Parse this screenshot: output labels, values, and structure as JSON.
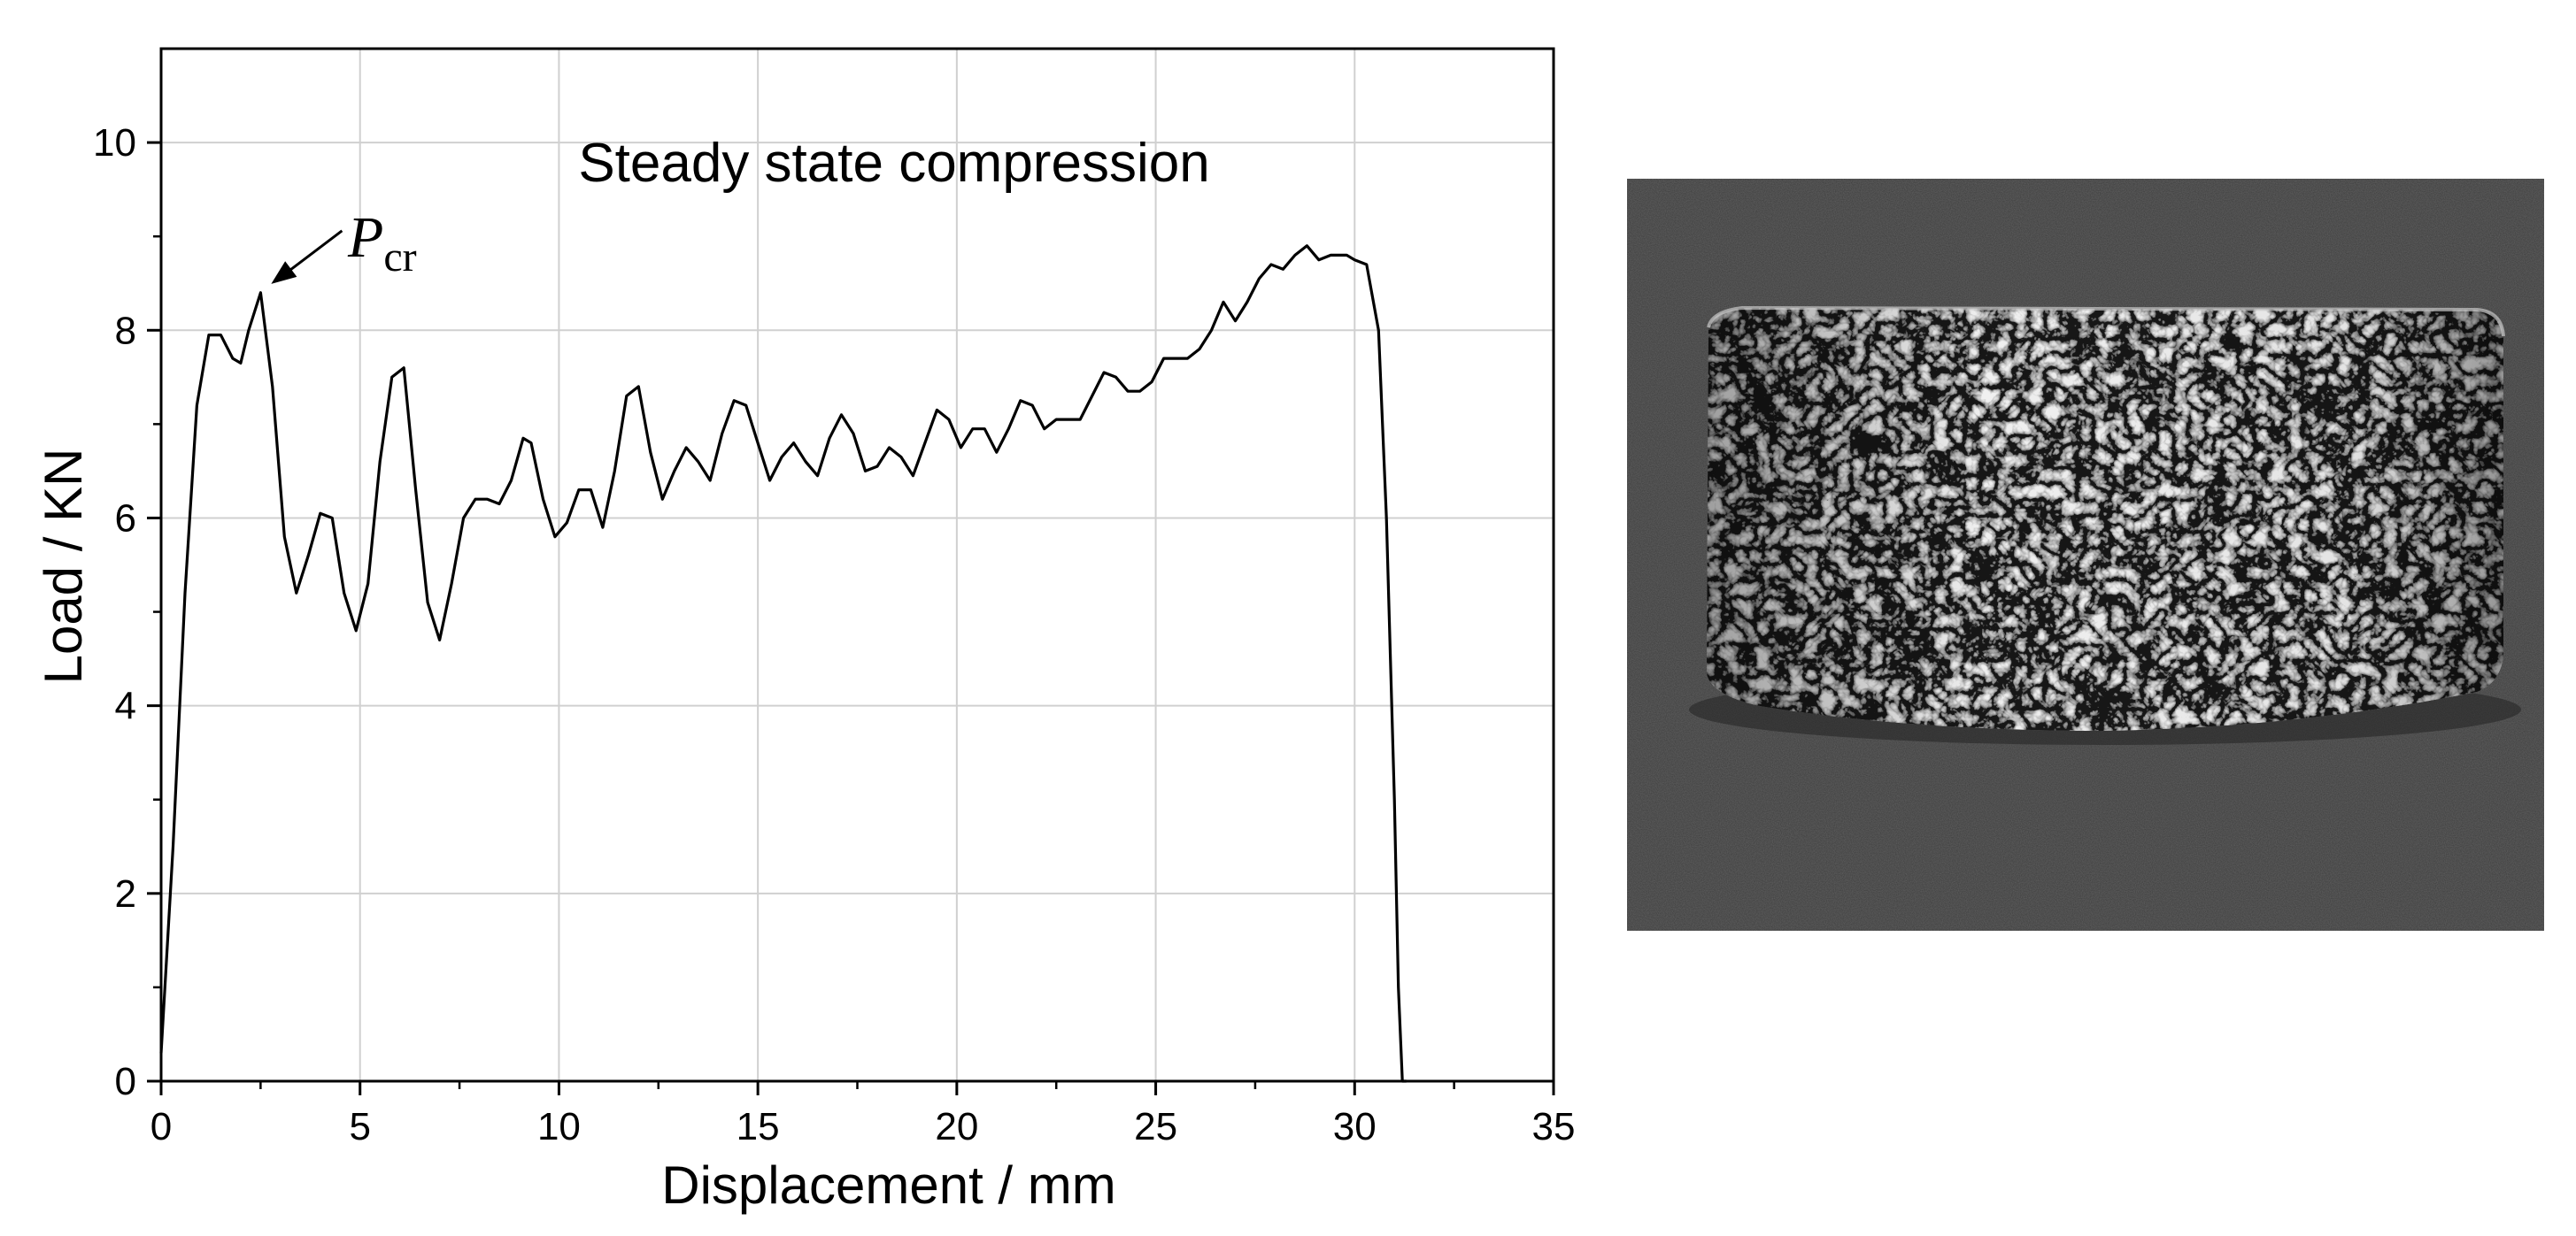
{
  "chart_data": {
    "type": "line",
    "title": "",
    "annotation_text": "Steady state compression",
    "xlabel": "Displacement / mm",
    "ylabel": "Load / KN",
    "xlim": [
      0,
      35
    ],
    "ylim": [
      0,
      11
    ],
    "xticks": [
      0,
      5,
      10,
      15,
      20,
      25,
      30,
      35
    ],
    "yticks": [
      0,
      2,
      4,
      6,
      8,
      10
    ],
    "grid": true,
    "peak_label": {
      "symbol": "P",
      "subscript": "cr",
      "x": 2.5,
      "y": 8.4
    },
    "series": [
      {
        "color": "#000000",
        "x": [
          0,
          0.3,
          0.6,
          0.9,
          1.2,
          1.5,
          1.8,
          2.0,
          2.2,
          2.5,
          2.8,
          3.1,
          3.4,
          3.7,
          4.0,
          4.3,
          4.6,
          4.9,
          5.2,
          5.5,
          5.8,
          6.1,
          6.4,
          6.7,
          7.0,
          7.3,
          7.6,
          7.9,
          8.2,
          8.5,
          8.8,
          9.1,
          9.3,
          9.6,
          9.9,
          10.2,
          10.5,
          10.8,
          11.1,
          11.4,
          11.7,
          12.0,
          12.3,
          12.6,
          12.9,
          13.2,
          13.5,
          13.8,
          14.1,
          14.4,
          14.7,
          15.0,
          15.3,
          15.6,
          15.9,
          16.2,
          16.5,
          16.8,
          17.1,
          17.4,
          17.7,
          18.0,
          18.3,
          18.6,
          18.9,
          19.2,
          19.5,
          19.8,
          20.1,
          20.4,
          20.7,
          21.0,
          21.3,
          21.6,
          21.9,
          22.2,
          22.5,
          22.8,
          23.1,
          23.4,
          23.7,
          24.0,
          24.3,
          24.6,
          24.9,
          25.2,
          25.5,
          25.8,
          26.1,
          26.4,
          26.7,
          27.0,
          27.3,
          27.6,
          27.9,
          28.2,
          28.5,
          28.8,
          29.1,
          29.4,
          29.6,
          29.8,
          30.0,
          30.3,
          30.6,
          30.8,
          31.0,
          31.1,
          31.2,
          31.3
        ],
        "y": [
          0.3,
          2.5,
          5.2,
          7.2,
          7.95,
          7.95,
          7.7,
          7.65,
          8.0,
          8.4,
          7.4,
          5.8,
          5.2,
          5.6,
          6.05,
          6.0,
          5.2,
          4.8,
          5.3,
          6.6,
          7.5,
          7.6,
          6.3,
          5.1,
          4.7,
          5.3,
          6.0,
          6.2,
          6.2,
          6.15,
          6.4,
          6.85,
          6.8,
          6.2,
          5.8,
          5.95,
          6.3,
          6.3,
          5.9,
          6.5,
          7.3,
          7.4,
          6.7,
          6.2,
          6.5,
          6.75,
          6.6,
          6.4,
          6.9,
          7.25,
          7.2,
          6.8,
          6.4,
          6.65,
          6.8,
          6.6,
          6.45,
          6.85,
          7.1,
          6.9,
          6.5,
          6.55,
          6.75,
          6.65,
          6.45,
          6.8,
          7.15,
          7.05,
          6.75,
          6.95,
          6.95,
          6.7,
          6.95,
          7.25,
          7.2,
          6.95,
          7.05,
          7.05,
          7.05,
          7.3,
          7.55,
          7.5,
          7.35,
          7.35,
          7.45,
          7.7,
          7.7,
          7.7,
          7.8,
          8.0,
          8.3,
          8.1,
          8.3,
          8.55,
          8.7,
          8.65,
          8.8,
          8.9,
          8.75,
          8.8,
          8.8,
          8.8,
          8.75,
          8.7,
          8.0,
          6.0,
          3.0,
          1.0,
          0.0,
          0.0
        ]
      }
    ]
  },
  "photo": {
    "description_icon": "metal-foam-specimen-photo",
    "colors": {
      "background": "#3a3a3a",
      "specimen": "#a8a8a8",
      "pore": "#2a2a2a"
    }
  }
}
